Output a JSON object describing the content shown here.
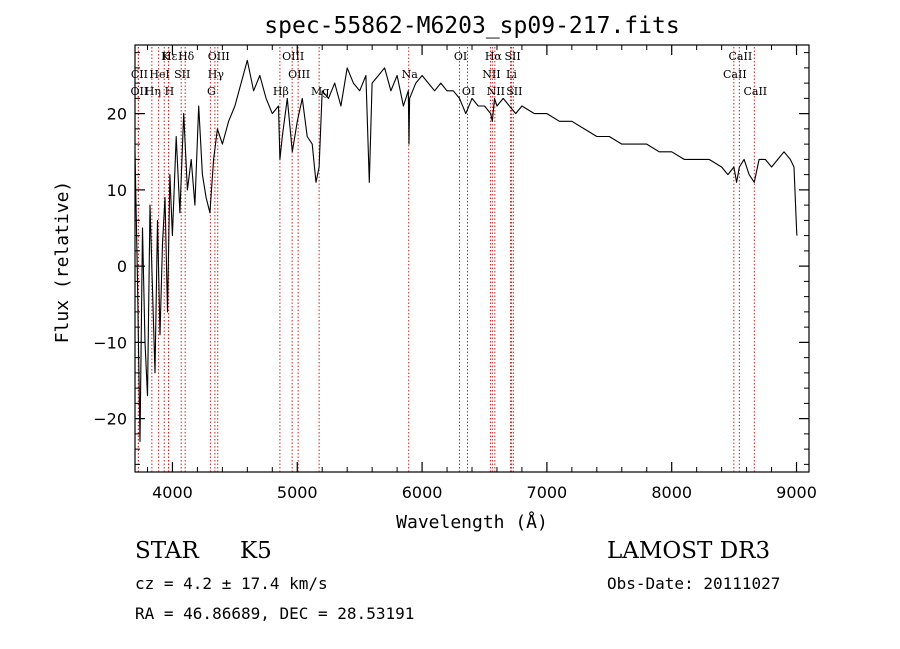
{
  "chart_data": {
    "type": "line",
    "title": "spec-55862-M6203_sp09-217.fits",
    "xlabel": "Wavelength (Å)",
    "ylabel": "Flux (relative)",
    "xlim": [
      3700,
      9100
    ],
    "ylim": [
      -27,
      29
    ],
    "xticks": [
      4000,
      5000,
      6000,
      7000,
      8000,
      9000
    ],
    "yticks": [
      -20,
      -10,
      0,
      10,
      20
    ],
    "grid": false,
    "series": [
      {
        "name": "flux",
        "x": [
          3700,
          3720,
          3740,
          3760,
          3780,
          3800,
          3820,
          3840,
          3860,
          3880,
          3900,
          3920,
          3940,
          3960,
          3980,
          4000,
          4030,
          4060,
          4090,
          4120,
          4150,
          4180,
          4210,
          4240,
          4270,
          4300,
          4330,
          4360,
          4400,
          4450,
          4500,
          4550,
          4600,
          4650,
          4700,
          4750,
          4800,
          4850,
          4861,
          4880,
          4920,
          4960,
          5000,
          5040,
          5080,
          5120,
          5150,
          5175,
          5200,
          5250,
          5300,
          5350,
          5400,
          5450,
          5500,
          5550,
          5577,
          5600,
          5650,
          5700,
          5750,
          5800,
          5850,
          5890,
          5895,
          5900,
          5950,
          6000,
          6050,
          6100,
          6150,
          6200,
          6250,
          6300,
          6350,
          6400,
          6450,
          6500,
          6550,
          6563,
          6580,
          6600,
          6650,
          6700,
          6750,
          6800,
          6900,
          7000,
          7100,
          7200,
          7300,
          7400,
          7500,
          7600,
          7700,
          7800,
          7900,
          8000,
          8100,
          8200,
          8300,
          8400,
          8450,
          8498,
          8520,
          8542,
          8580,
          8620,
          8662,
          8700,
          8750,
          8800,
          8850,
          8900,
          8950,
          8980,
          9000,
          9003
        ],
        "y": [
          15,
          -2,
          -23,
          5,
          -10,
          -17,
          8,
          -3,
          -14,
          6,
          -9,
          3,
          9,
          -6,
          12,
          4,
          17,
          7,
          20,
          10,
          14,
          8,
          21,
          12,
          9,
          7,
          14,
          18,
          16,
          19,
          21,
          24,
          27,
          23,
          25,
          22,
          20,
          21,
          14,
          17,
          22,
          15,
          19,
          22,
          17,
          16,
          11,
          13,
          23,
          22,
          24,
          21,
          26,
          24,
          23,
          25,
          11,
          24,
          25,
          26,
          23,
          25,
          21,
          23,
          16,
          22,
          24,
          25,
          24,
          23,
          24,
          23,
          23,
          22,
          20,
          22,
          21,
          21,
          20,
          19,
          22,
          21,
          22,
          21,
          20,
          21,
          20,
          20,
          19,
          19,
          18,
          17,
          17,
          16,
          16,
          16,
          15,
          15,
          14,
          14,
          14,
          13,
          12,
          13,
          11,
          13,
          14,
          12,
          11,
          14,
          14,
          13,
          14,
          15,
          14,
          13,
          5,
          4
        ]
      }
    ],
    "line_markers": [
      {
        "label": "Hε",
        "wavelength": 3970,
        "row": 1
      },
      {
        "label": "CII",
        "wavelength": 3727,
        "row": 2
      },
      {
        "label": "OII",
        "wavelength": 3727,
        "row": 3
      },
      {
        "label": "Hη",
        "wavelength": 3835,
        "row": 3
      },
      {
        "label": "HeI",
        "wavelength": 3889,
        "row": 2
      },
      {
        "label": "K",
        "wavelength": 3934,
        "row": 1
      },
      {
        "label": "H",
        "wavelength": 3968,
        "row": 3
      },
      {
        "label": "SII",
        "wavelength": 4070,
        "row": 2
      },
      {
        "label": "Hδ",
        "wavelength": 4102,
        "row": 1
      },
      {
        "label": "OIII",
        "wavelength": 4363,
        "row": 1
      },
      {
        "label": "Hγ",
        "wavelength": 4340,
        "row": 2
      },
      {
        "label": "G",
        "wavelength": 4304,
        "row": 3
      },
      {
        "label": "Hβ",
        "wavelength": 4861,
        "row": 3
      },
      {
        "label": "OIII",
        "wavelength": 4959,
        "row": 1
      },
      {
        "label": "OIII",
        "wavelength": 5007,
        "row": 2
      },
      {
        "label": "Mg",
        "wavelength": 5175,
        "row": 3
      },
      {
        "label": "Na",
        "wavelength": 5893,
        "row": 2
      },
      {
        "label": "OI",
        "wavelength": 6300,
        "row": 1
      },
      {
        "label": "OI",
        "wavelength": 6364,
        "row": 3
      },
      {
        "label": "Hα",
        "wavelength": 6563,
        "row": 1
      },
      {
        "label": "SII",
        "wavelength": 6717,
        "row": 1
      },
      {
        "label": "NII",
        "wavelength": 6548,
        "row": 2
      },
      {
        "label": "Li",
        "wavelength": 6708,
        "row": 2
      },
      {
        "label": "NII",
        "wavelength": 6583,
        "row": 3
      },
      {
        "label": "SII",
        "wavelength": 6731,
        "row": 3
      },
      {
        "label": "CaII",
        "wavelength": 8542,
        "row": 1
      },
      {
        "label": "CaII",
        "wavelength": 8498,
        "row": 2
      },
      {
        "label": "CaII",
        "wavelength": 8662,
        "row": 3
      }
    ]
  },
  "info": {
    "object_class": "STAR",
    "subclass": "K5",
    "survey": "LAMOST DR3",
    "cz_line": "cz = 4.2 ± 17.4 km/s",
    "obs_date": "Obs-Date: 20111027",
    "coords": "RA =  46.86689, DEC =  28.53191"
  }
}
